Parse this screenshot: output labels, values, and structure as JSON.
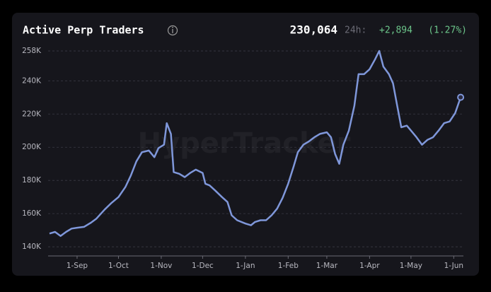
{
  "chart_data": {
    "type": "line",
    "title": "Active Perp Traders",
    "current": {
      "value": 230064,
      "label": "230,064"
    },
    "change_period": "24h:",
    "change": {
      "value": 2894,
      "label": "+2,894"
    },
    "change_pct": {
      "value": 1.27,
      "label": "(1.27%)"
    },
    "watermark": "HyperTracker",
    "color": "#7f97da",
    "x": [
      "12-Aug",
      "16-Aug",
      "20-Aug",
      "24-Aug",
      "28-Aug",
      "1-Sep",
      "6-Sep",
      "11-Sep",
      "15-Sep",
      "21-Sep",
      "26-Sep",
      "1-Oct",
      "6-Oct",
      "10-Oct",
      "14-Oct",
      "18-Oct",
      "23-Oct",
      "27-Oct",
      "30-Oct",
      "3-Nov",
      "5-Nov",
      "8-Nov",
      "10-Nov",
      "14-Nov",
      "18-Nov",
      "22-Nov",
      "26-Nov",
      "1-Dec",
      "3-Dec",
      "6-Dec",
      "10-Dec",
      "15-Dec",
      "19-Dec",
      "22-Dec",
      "26-Dec",
      "1-Jan",
      "5-Jan",
      "8-Jan",
      "12-Jan",
      "16-Jan",
      "20-Jan",
      "24-Jan",
      "28-Jan",
      "1-Feb",
      "5-Feb",
      "8-Feb",
      "12-Feb",
      "16-Feb",
      "20-Feb",
      "24-Feb",
      "1-Mar",
      "4-Mar",
      "7-Mar",
      "10-Mar",
      "13-Mar",
      "17-Mar",
      "21-Mar",
      "24-Mar",
      "28-Mar",
      "1-Apr",
      "5-Apr",
      "8-Apr",
      "11-Apr",
      "15-Apr",
      "18-Apr",
      "21-Apr",
      "24-Apr",
      "28-Apr",
      "1-May",
      "5-May",
      "9-May",
      "13-May",
      "17-May",
      "21-May",
      "25-May",
      "29-May",
      "2-Jun",
      "6-Jun"
    ],
    "values": [
      148000,
      149000,
      146500,
      149000,
      151000,
      151500,
      152000,
      154500,
      157000,
      162500,
      166500,
      170000,
      176000,
      183000,
      191500,
      197000,
      198000,
      194000,
      199500,
      201500,
      214500,
      208000,
      185000,
      184000,
      182000,
      184500,
      186500,
      184500,
      178000,
      177000,
      174000,
      170000,
      167000,
      159000,
      156000,
      154000,
      153000,
      155000,
      156000,
      156000,
      159000,
      163000,
      169500,
      178000,
      188500,
      197000,
      201500,
      203500,
      206000,
      208000,
      209000,
      206000,
      196000,
      190000,
      201500,
      210000,
      225000,
      244000,
      244000,
      247000,
      253000,
      258000,
      248500,
      244000,
      238500,
      225000,
      212000,
      213000,
      210000,
      206000,
      201500,
      204500,
      206000,
      210000,
      214500,
      215500,
      220500,
      230064
    ],
    "xlim": [
      "11-Aug",
      "8-Jun"
    ],
    "xticks": [
      "1-Sep",
      "1-Oct",
      "1-Nov",
      "1-Dec",
      "1-Jan",
      "1-Feb",
      "1-Mar",
      "1-Apr",
      "1-May",
      "1-Jun"
    ],
    "ylim": [
      134500,
      261000
    ],
    "yticks": [
      {
        "value": 140000,
        "label": "140K"
      },
      {
        "value": 160000,
        "label": "160K"
      },
      {
        "value": 180000,
        "label": "180K"
      },
      {
        "value": 200000,
        "label": "200K"
      },
      {
        "value": 220000,
        "label": "220K"
      },
      {
        "value": 240000,
        "label": "240K"
      },
      {
        "value": 258000,
        "label": "258K"
      }
    ],
    "grid": true
  }
}
